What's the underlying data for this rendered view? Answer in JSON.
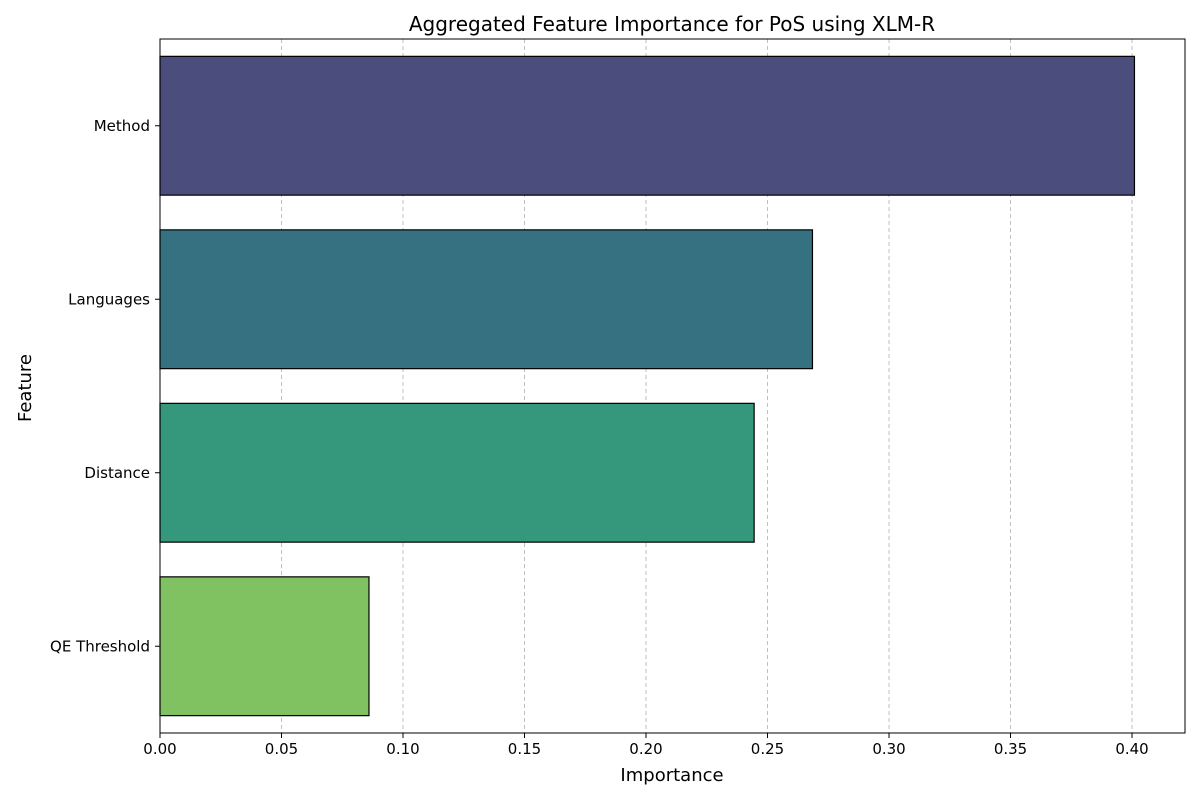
{
  "chart_data": {
    "type": "bar",
    "orientation": "horizontal",
    "title": "Aggregated Feature Importance for PoS using XLM-R",
    "xlabel": "Importance",
    "ylabel": "Feature",
    "categories": [
      "Method",
      "Languages",
      "Distance",
      "QE Threshold"
    ],
    "values": [
      0.401,
      0.2685,
      0.2445,
      0.086
    ],
    "colors": [
      "#4b4e7d",
      "#367181",
      "#35977c",
      "#80c262"
    ],
    "xlim": [
      0,
      0.4218
    ],
    "xticks": [
      0.0,
      0.05,
      0.1,
      0.15,
      0.2,
      0.25,
      0.3,
      0.35,
      0.4
    ],
    "xtick_labels": [
      "0.00",
      "0.05",
      "0.10",
      "0.15",
      "0.20",
      "0.25",
      "0.30",
      "0.35",
      "0.40"
    ],
    "grid": "x-dashed",
    "legend": "none"
  }
}
